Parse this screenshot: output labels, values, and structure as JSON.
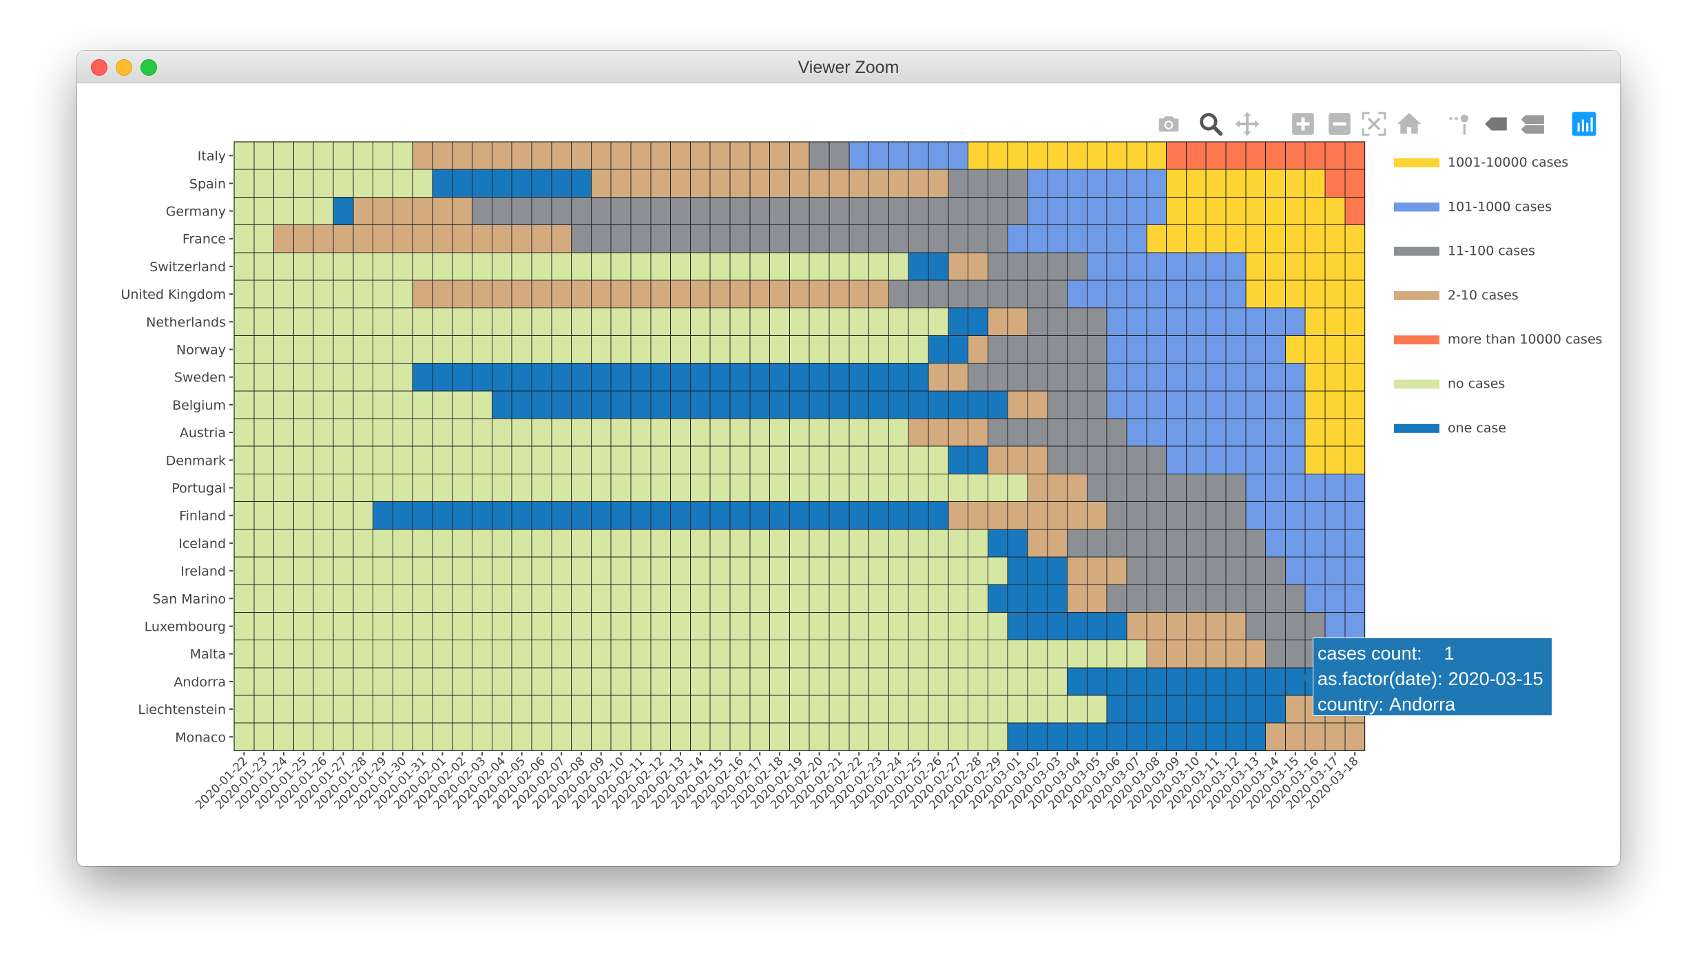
{
  "window": {
    "title": "Viewer Zoom"
  },
  "toolbar": {
    "icons": [
      "camera-icon",
      "zoom-icon",
      "pan-icon",
      "zoom-in-icon",
      "zoom-out-icon",
      "autoscale-icon",
      "reset-axes-icon",
      "spike-lines-icon",
      "hover-closest-icon",
      "hover-compare-icon",
      "plotly-logo-icon"
    ]
  },
  "colors": {
    "1001-10000 cases": "#fdd432",
    "101-1000 cases": "#6e9ae8",
    "11-100 cases": "#8c8f94",
    "2-10 cases": "#d3ab7f",
    "more than 10000 cases": "#fd7850",
    "no cases": "#d6e6a3",
    "one case": "#1878bd"
  },
  "chart_data": {
    "type": "heatmap",
    "title": "",
    "xlabel": "",
    "ylabel": "",
    "x": [
      "2020-01-22",
      "2020-01-23",
      "2020-01-24",
      "2020-01-25",
      "2020-01-26",
      "2020-01-27",
      "2020-01-28",
      "2020-01-29",
      "2020-01-30",
      "2020-01-31",
      "2020-02-01",
      "2020-02-02",
      "2020-02-03",
      "2020-02-04",
      "2020-02-05",
      "2020-02-06",
      "2020-02-07",
      "2020-02-08",
      "2020-02-09",
      "2020-02-10",
      "2020-02-11",
      "2020-02-12",
      "2020-02-13",
      "2020-02-14",
      "2020-02-15",
      "2020-02-16",
      "2020-02-17",
      "2020-02-18",
      "2020-02-19",
      "2020-02-20",
      "2020-02-21",
      "2020-02-22",
      "2020-02-23",
      "2020-02-24",
      "2020-02-25",
      "2020-02-26",
      "2020-02-27",
      "2020-02-28",
      "2020-02-29",
      "2020-03-01",
      "2020-03-02",
      "2020-03-03",
      "2020-03-04",
      "2020-03-05",
      "2020-03-06",
      "2020-03-07",
      "2020-03-08",
      "2020-03-09",
      "2020-03-10",
      "2020-03-11",
      "2020-03-12",
      "2020-03-13",
      "2020-03-14",
      "2020-03-15",
      "2020-03-16",
      "2020-03-17",
      "2020-03-18"
    ],
    "countries": [
      "Italy",
      "Spain",
      "Germany",
      "France",
      "Switzerland",
      "United Kingdom",
      "Netherlands",
      "Norway",
      "Sweden",
      "Belgium",
      "Austria",
      "Denmark",
      "Portugal",
      "Finland",
      "Iceland",
      "Ireland",
      "San Marino",
      "Luxembourg",
      "Malta",
      "Andorra",
      "Liechtenstein",
      "Monaco"
    ],
    "categories": [
      "1001-10000 cases",
      "101-1000 cases",
      "11-100 cases",
      "2-10 cases",
      "more than 10000 cases",
      "no cases",
      "one case"
    ],
    "codes": {
      "N": "no cases",
      "O": "one case",
      "T": "2-10 cases",
      "E": "11-100 cases",
      "H": "101-1000 cases",
      "K": "1001-10000 cases",
      "M": "more than 10000 cases"
    },
    "rows": {
      "Italy": "NNNNNNNNNTTTTTTTTTTTTTTTTTTTTEEHHHHHHKKKKKKKKKKMMMMMMMMMM",
      "Spain": "NNNNNNNNNNOOOOOOOOTTTTTTTTTTTTTTTTTTEEEEHHHHHHHKKKKKKKKMM",
      "Germany": "NNNNNOTTTTTTEEEEEEEEEEEEEEEEEEEEEEEEEEEEHHHHHHHKKKKKKKKKM",
      "France": "NNTTTTTTTTTTTTTTTEEEEEEEEEEEEEEEEEEEEEEHHHHHHHKKKKKKKKKKK",
      "Switzerland": "NNNNNNNNNNNNNNNNNNNNNNNNNNNNNNNNNNOOTTEEEEEHHHHHHHHKKKKKK",
      "United Kingdom": "NNNNNNNNNTTTTTTTTTTTTTTTTTTTTTTTTEEEEEEEEEHHHHHHHHHKKKKKK",
      "Netherlands": "NNNNNNNNNNNNNNNNNNNNNNNNNNNNNNNNNNNNOOTTEEEEHHHHHHHHHHKKK",
      "Norway": "NNNNNNNNNNNNNNNNNNNNNNNNNNNNNNNNNNNOOTEEEEEEHHHHHHHHHKKKK",
      "Sweden": "NNNNNNNNNOOOOOOOOOOOOOOOOOOOOOOOOOOTTEEEEEEEHHHHHHHHHHKKK",
      "Belgium": "NNNNNNNNNNNNNOOOOOOOOOOOOOOOOOOOOOOOOOOTTEEEHHHHHHHHHHKKK",
      "Austria": "NNNNNNNNNNNNNNNNNNNNNNNNNNNNNNNNNNTTTTEEEEEEEHHHHHHHHHKKK",
      "Denmark": "NNNNNNNNNNNNNNNNNNNNNNNNNNNNNNNNNNNNOOTTTEEEEEEHHHHHHHKKK",
      "Portugal": "NNNNNNNNNNNNNNNNNNNNNNNNNNNNNNNNNNNNNNNNTTTEEEEEEEEHHHHHH",
      "Finland": "NNNNNNNOOOOOOOOOOOOOOOOOOOOOOOOOOOOOTTTTTTTTEEEEEEEHHHHHH",
      "Iceland": "NNNNNNNNNNNNNNNNNNNNNNNNNNNNNNNNNNNNNNOOTTEEEEEEEEEEHHHHH",
      "Ireland": "NNNNNNNNNNNNNNNNNNNNNNNNNNNNNNNNNNNNNNNOOOTTTEEEEEEEEHHHH",
      "San Marino": "NNNNNNNNNNNNNNNNNNNNNNNNNNNNNNNNNNNNNNOOOOTTEEEEEEEEEEHHH",
      "Luxembourg": "NNNNNNNNNNNNNNNNNNNNNNNNNNNNNNNNNNNNNNNOOOOOOTTTTTTEEEEHH",
      "Malta": "NNNNNNNNNNNNNNNNNNNNNNNNNNNNNNNNNNNNNNNNNNNNNNTTTTTTEEEEH",
      "Andorra": "NNNNNNNNNNNNNNNNNNNNNNNNNNNNNNNNNNNNNNNNNNOOOOOOOOOOOOOOH",
      "Liechtenstein": "NNNNNNNNNNNNNNNNNNNNNNNNNNNNNNNNNNNNNNNNNNNNOOOOOOOOOTTTT",
      "Monaco": "NNNNNNNNNNNNNNNNNNNNNNNNNNNNNNNNNNNNNNNOOOOOOOOOOOOOTTTTTT"
    },
    "legend": [
      "1001-10000 cases",
      "101-1000 cases",
      "11-100 cases",
      "2-10 cases",
      "more than 10000 cases",
      "no cases",
      "one case"
    ],
    "legend_position": "right"
  },
  "tooltip": {
    "line1_key": "cases count:",
    "line1_value": "1",
    "line2_key": "as.factor(date):",
    "line2_value": "2020-03-15",
    "line3_key": "country:",
    "line3_value": "Andorra"
  }
}
